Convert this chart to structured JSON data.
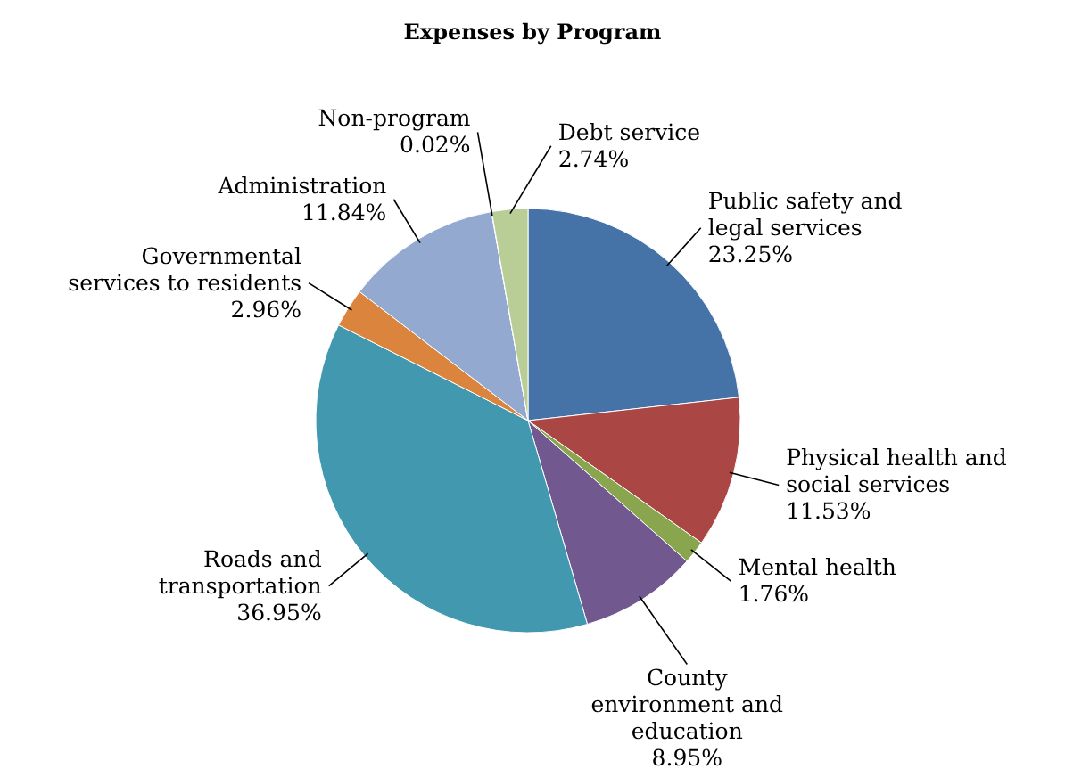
{
  "chart_data": {
    "type": "pie",
    "title": "Expenses by Program",
    "categories": [
      "Public safety and\nlegal services",
      "Physical health and\nsocial services",
      "Mental health",
      "County\nenvironment and\neducation",
      "Roads and\ntransportation",
      "Governmental\nservices to residents",
      "Administration",
      "Non-program",
      "Debt service"
    ],
    "values": [
      23.25,
      11.53,
      1.76,
      8.95,
      36.95,
      2.96,
      11.84,
      0.02,
      2.74
    ],
    "value_labels": [
      "23.25%",
      "11.53%",
      "1.76%",
      "8.95%",
      "36.95%",
      "2.96%",
      "11.84%",
      "0.02%",
      "2.74%"
    ],
    "colors": [
      "#4572a7",
      "#aa4643",
      "#89a54e",
      "#71588f",
      "#4198af",
      "#db843d",
      "#93a9cf",
      "#c2c2c2",
      "#b9cd96"
    ],
    "legend": false
  }
}
